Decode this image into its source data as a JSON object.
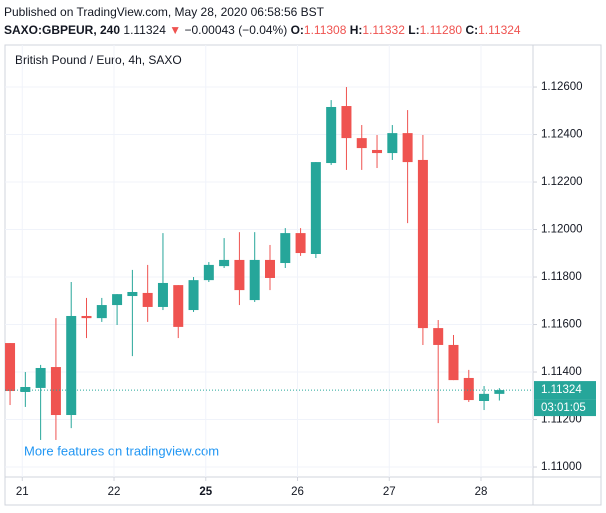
{
  "header": {
    "published": "Published on TradingView.com, May 28, 2020 06:58:56 BST",
    "symbol": "SAXO:GBPEUR, 240",
    "last": "1.11324",
    "arrow": "▼",
    "change": "−0.00043 (−0.04%)",
    "o_label": "O:",
    "o": "1.11308",
    "h_label": "H:",
    "h": "1.11332",
    "l_label": "L:",
    "l": "1.11280",
    "c_label": "C:",
    "c": "1.11324"
  },
  "chart_data": {
    "type": "candlestick",
    "title": "British Pound / Euro, 4h, SAXO",
    "annotation": "More features on tradingview.com",
    "up_color": "#26a69a",
    "down_color": "#ef5350",
    "open": [
      1.11522,
      1.11316,
      1.11333,
      1.11421,
      1.11219,
      1.11636,
      1.11627,
      1.11682,
      1.1172,
      1.11733,
      1.11674,
      1.11766,
      1.11661,
      1.11787,
      1.11846,
      1.11872,
      1.11703,
      1.11872,
      1.11859,
      1.11985,
      1.11897,
      1.1228,
      1.1252,
      1.12385,
      1.12335,
      1.12322,
      1.12406,
      1.12293,
      1.11585,
      1.11514,
      1.11375,
      1.11278,
      1.11308
    ],
    "high": [
      1.11522,
      1.114,
      1.1143,
      1.11627,
      1.11779,
      1.11712,
      1.11712,
      1.11728,
      1.1183,
      1.11851,
      1.11985,
      1.11766,
      1.118,
      1.11863,
      1.11964,
      1.11989,
      1.11989,
      1.11935,
      1.12006,
      1.12006,
      1.12284,
      1.12545,
      1.126,
      1.1244,
      1.12398,
      1.1244,
      1.12503,
      1.12398,
      1.11619,
      1.11556,
      1.11409,
      1.11341,
      1.11332
    ],
    "low": [
      1.11261,
      1.11253,
      1.11114,
      1.11114,
      1.11164,
      1.11543,
      1.11611,
      1.11598,
      1.11467,
      1.11611,
      1.11661,
      1.11543,
      1.11653,
      1.11779,
      1.11838,
      1.11682,
      1.11695,
      1.11745,
      1.11838,
      1.11889,
      1.1188,
      1.12272,
      1.12251,
      1.12251,
      1.12259,
      1.12293,
      1.12027,
      1.11514,
      1.11185,
      1.11366,
      1.11274,
      1.1124,
      1.1128
    ],
    "close": [
      1.1132,
      1.11337,
      1.11417,
      1.11219,
      1.11636,
      1.11627,
      1.11682,
      1.11728,
      1.11737,
      1.11674,
      1.11775,
      1.1159,
      1.11787,
      1.11851,
      1.11872,
      1.11745,
      1.11872,
      1.11796,
      1.11985,
      1.11901,
      1.12284,
      1.12516,
      1.12385,
      1.12343,
      1.12322,
      1.12406,
      1.12284,
      1.11585,
      1.11514,
      1.11366,
      1.11282,
      1.11308,
      1.11324
    ],
    "last_price": 1.11324,
    "countdown": "03:01:05",
    "xlim": [
      -0.33,
      34.2
    ],
    "xticks": [
      {
        "value": 0.8,
        "label": "21"
      },
      {
        "value": 6.8,
        "label": "22"
      },
      {
        "value": 12.8,
        "label": "25"
      },
      {
        "value": 18.8,
        "label": "26"
      },
      {
        "value": 24.8,
        "label": "27"
      },
      {
        "value": 30.8,
        "label": "28"
      }
    ],
    "ylim": [
      1.10958,
      1.12777
    ],
    "yticks": [
      {
        "value": 1.11,
        "label": "1.11000"
      },
      {
        "value": 1.112,
        "label": "1.11200"
      },
      {
        "value": 1.114,
        "label": "1.11400"
      },
      {
        "value": 1.116,
        "label": "1.11600"
      },
      {
        "value": 1.118,
        "label": "1.11800"
      },
      {
        "value": 1.12,
        "label": "1.12000"
      },
      {
        "value": 1.122,
        "label": "1.12200"
      },
      {
        "value": 1.124,
        "label": "1.12400"
      },
      {
        "value": 1.126,
        "label": "1.12600"
      }
    ],
    "grid": true
  }
}
